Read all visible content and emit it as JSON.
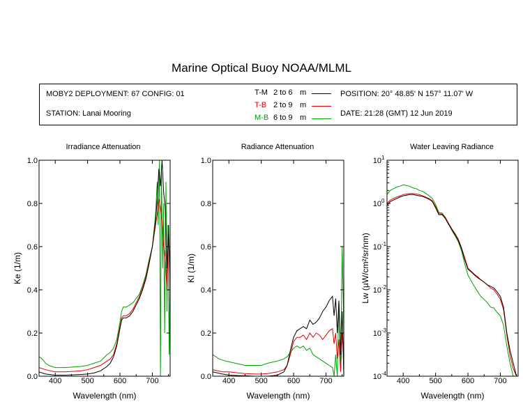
{
  "title": "Marine Optical Buoy NOAA/MLML",
  "info": {
    "deployment": "MOBY2 DEPLOYMENT: 67 CONFIG: 01",
    "station": "STATION: Lanai Mooring",
    "position": "POSITION: 20° 48.85' N   157° 11.07' W",
    "date": "DATE: 21:28 (GMT) 12 Jun 2019",
    "legend": [
      {
        "code": "T-M",
        "range": "2 to 6",
        "unit": "m",
        "color": "#000000",
        "code_color": "#000000"
      },
      {
        "code": "T-B",
        "range": "2 to 9",
        "unit": "m",
        "color": "#e00000",
        "code_color": "#e00000"
      },
      {
        "code": "M-B",
        "range": "6 to 9",
        "unit": "m",
        "color": "#00a000",
        "code_color": "#00a000"
      }
    ]
  },
  "chart_data": [
    {
      "type": "line",
      "title": "Irradiance Attenuation",
      "xlabel": "Wavelength (nm)",
      "ylabel": "Ke  (1/m)",
      "xlim": [
        350,
        755
      ],
      "ylim": [
        0,
        1.0
      ],
      "xticks": [
        "400",
        "500",
        "600",
        "700"
      ],
      "yticks": [
        "0.0",
        "0.2",
        "0.4",
        "0.6",
        "0.8",
        "1.0"
      ],
      "series": [
        {
          "name": "T-M",
          "color": "#000000",
          "x": [
            350,
            370,
            400,
            430,
            450,
            480,
            500,
            520,
            540,
            560,
            570,
            580,
            590,
            600,
            605,
            610,
            620,
            630,
            640,
            650,
            660,
            670,
            680,
            690,
            700,
            710,
            715,
            720,
            725,
            730,
            735,
            740,
            745,
            750,
            755
          ],
          "y": [
            0.02,
            0.01,
            0.005,
            0.005,
            0.006,
            0.008,
            0.01,
            0.015,
            0.025,
            0.045,
            0.06,
            0.09,
            0.14,
            0.22,
            0.26,
            0.27,
            0.27,
            0.28,
            0.3,
            0.33,
            0.36,
            0.4,
            0.45,
            0.52,
            0.6,
            0.72,
            0.82,
            0.96,
            0.88,
            1.0,
            0.85,
            0.78,
            0.5,
            0.7,
            0.4
          ]
        },
        {
          "name": "T-B",
          "color": "#e00000",
          "x": [
            350,
            370,
            400,
            430,
            450,
            480,
            500,
            520,
            540,
            560,
            570,
            580,
            590,
            600,
            605,
            610,
            620,
            630,
            640,
            650,
            660,
            670,
            680,
            690,
            700,
            710,
            715,
            720,
            725,
            730,
            735,
            740,
            745,
            750,
            755
          ],
          "y": [
            0.04,
            0.03,
            0.02,
            0.02,
            0.022,
            0.025,
            0.03,
            0.04,
            0.05,
            0.07,
            0.08,
            0.1,
            0.15,
            0.23,
            0.27,
            0.28,
            0.28,
            0.29,
            0.31,
            0.34,
            0.37,
            0.41,
            0.46,
            0.53,
            0.6,
            0.7,
            0.75,
            0.82,
            0.78,
            0.72,
            0.6,
            0.55,
            0.4,
            0.65,
            0.5
          ]
        },
        {
          "name": "M-B",
          "color": "#00a000",
          "x": [
            350,
            360,
            370,
            380,
            400,
            430,
            450,
            480,
            500,
            520,
            540,
            560,
            570,
            580,
            590,
            600,
            605,
            610,
            620,
            630,
            640,
            650,
            660,
            670,
            680,
            690,
            700,
            710,
            715,
            718,
            722,
            725,
            728,
            732,
            735,
            738,
            742,
            745,
            748,
            752,
            755
          ],
          "y": [
            0.09,
            0.08,
            0.06,
            0.05,
            0.04,
            0.04,
            0.042,
            0.045,
            0.05,
            0.06,
            0.07,
            0.1,
            0.11,
            0.13,
            0.17,
            0.25,
            0.3,
            0.32,
            0.32,
            0.33,
            0.34,
            0.36,
            0.38,
            0.42,
            0.47,
            0.54,
            0.6,
            0.75,
            0.9,
            0.7,
            1.0,
            0.0,
            0.95,
            0.5,
            0.8,
            0.2,
            0.9,
            0.3,
            0.7,
            0.1,
            0.6
          ]
        }
      ]
    },
    {
      "type": "line",
      "title": "Radiance Attenuation",
      "xlabel": "Wavelength (nm)",
      "ylabel": "Kl  (1/m)",
      "xlim": [
        350,
        755
      ],
      "ylim": [
        0,
        1.0
      ],
      "xticks": [
        "400",
        "500",
        "600",
        "700"
      ],
      "yticks": [
        "0.0",
        "0.2",
        "0.4",
        "0.6",
        "0.8",
        "1.0"
      ],
      "series": [
        {
          "name": "T-M",
          "color": "#000000",
          "x": [
            350,
            380,
            400,
            430,
            450,
            480,
            500,
            520,
            550,
            570,
            580,
            590,
            600,
            610,
            620,
            630,
            640,
            650,
            660,
            670,
            680,
            690,
            700,
            710,
            720,
            725,
            730,
            735,
            740,
            745,
            750,
            755
          ],
          "y": [
            0.02,
            0.01,
            0.005,
            0.003,
            0.002,
            0.0,
            -0.01,
            0.0,
            0.005,
            0.02,
            0.05,
            0.12,
            0.18,
            0.21,
            0.22,
            0.23,
            0.22,
            0.26,
            0.24,
            0.25,
            0.27,
            0.3,
            0.32,
            0.35,
            0.37,
            0.28,
            0.36,
            0.2,
            0.35,
            0.1,
            0.3,
            0.0
          ]
        },
        {
          "name": "T-B",
          "color": "#e00000",
          "x": [
            350,
            380,
            400,
            430,
            450,
            480,
            500,
            520,
            550,
            570,
            580,
            590,
            600,
            610,
            620,
            630,
            640,
            650,
            660,
            670,
            680,
            690,
            700,
            710,
            720,
            725,
            730,
            735,
            740,
            745,
            750,
            755
          ],
          "y": [
            0.03,
            0.02,
            0.02,
            0.015,
            0.012,
            0.01,
            0.01,
            0.012,
            0.02,
            0.03,
            0.05,
            0.1,
            0.16,
            0.18,
            0.18,
            0.19,
            0.17,
            0.2,
            0.18,
            0.2,
            0.19,
            0.17,
            0.19,
            0.21,
            0.22,
            0.15,
            0.2,
            0.08,
            0.17,
            0.02,
            0.2,
            0.1
          ]
        },
        {
          "name": "M-B",
          "color": "#00a000",
          "x": [
            350,
            370,
            390,
            420,
            450,
            480,
            500,
            520,
            550,
            570,
            580,
            590,
            600,
            610,
            620,
            630,
            640,
            650,
            660,
            670,
            680,
            690,
            700,
            710,
            720,
            725,
            730,
            735,
            740,
            745,
            750,
            755
          ],
          "y": [
            0.1,
            0.08,
            0.07,
            0.06,
            0.05,
            0.05,
            0.05,
            0.06,
            0.07,
            0.08,
            0.09,
            0.11,
            0.13,
            0.14,
            0.13,
            0.14,
            0.12,
            0.13,
            0.1,
            0.09,
            0.08,
            0.07,
            0.06,
            0.05,
            0.04,
            0.0,
            0.1,
            0.0,
            0.35,
            0.05,
            0.6,
            0.2
          ]
        }
      ]
    },
    {
      "type": "line",
      "title": "Water Leaving Radiance",
      "xlabel": "Wavelength (nm)",
      "ylabel": "Lw  (µW/cm²/sr/nm)",
      "yscale": "log",
      "xlim": [
        350,
        755
      ],
      "ylim": [
        0.0001,
        10
      ],
      "xticks": [
        "400",
        "500",
        "600",
        "700"
      ],
      "yticks": [
        {
          "base": "10",
          "exp": "1",
          "value": 10
        },
        {
          "base": "10",
          "exp": "0",
          "value": 1
        },
        {
          "base": "10",
          "exp": "-1",
          "value": 0.1
        },
        {
          "base": "10",
          "exp": "-2",
          "value": 0.01
        },
        {
          "base": "10",
          "exp": "-3",
          "value": 0.001
        },
        {
          "base": "10",
          "exp": "-4",
          "value": 0.0001
        }
      ],
      "series": [
        {
          "name": "T-M",
          "color": "#000000",
          "x": [
            350,
            360,
            370,
            380,
            390,
            400,
            410,
            420,
            430,
            440,
            450,
            460,
            470,
            480,
            490,
            500,
            510,
            520,
            530,
            540,
            550,
            560,
            570,
            580,
            590,
            600,
            610,
            620,
            630,
            640,
            650,
            660,
            670,
            680,
            690,
            700,
            710,
            720,
            730,
            740,
            750
          ],
          "y": [
            0.9,
            1.1,
            1.2,
            1.3,
            1.4,
            1.5,
            1.55,
            1.6,
            1.6,
            1.55,
            1.5,
            1.45,
            1.35,
            1.25,
            1.1,
            0.8,
            0.55,
            0.55,
            0.45,
            0.33,
            0.25,
            0.19,
            0.14,
            0.09,
            0.05,
            0.03,
            0.026,
            0.022,
            0.019,
            0.017,
            0.015,
            0.013,
            0.012,
            0.011,
            0.009,
            0.007,
            0.004,
            0.001,
            0.0004,
            0.0002,
            0.0001
          ]
        },
        {
          "name": "T-B",
          "color": "#e00000",
          "x": [
            350,
            360,
            370,
            380,
            390,
            400,
            410,
            420,
            430,
            440,
            450,
            460,
            470,
            480,
            490,
            500,
            510,
            520,
            530,
            540,
            550,
            560,
            570,
            580,
            590,
            600,
            610,
            620,
            630,
            640,
            650,
            660,
            670,
            680,
            690,
            700,
            710,
            720,
            730,
            740,
            750
          ],
          "y": [
            1.0,
            1.2,
            1.3,
            1.4,
            1.5,
            1.6,
            1.65,
            1.7,
            1.7,
            1.65,
            1.6,
            1.5,
            1.4,
            1.3,
            1.15,
            0.85,
            0.58,
            0.57,
            0.47,
            0.35,
            0.26,
            0.2,
            0.15,
            0.095,
            0.055,
            0.032,
            0.027,
            0.023,
            0.02,
            0.017,
            0.015,
            0.013,
            0.011,
            0.01,
            0.008,
            0.006,
            0.0035,
            0.0009,
            0.0003,
            0.00015,
            0.0001
          ]
        },
        {
          "name": "M-B",
          "color": "#00a000",
          "x": [
            350,
            360,
            370,
            380,
            390,
            400,
            410,
            420,
            430,
            440,
            450,
            460,
            470,
            480,
            490,
            500,
            510,
            520,
            530,
            540,
            550,
            560,
            570,
            580,
            590,
            600,
            610,
            620,
            630,
            640,
            650,
            660,
            670,
            680,
            690,
            700,
            710,
            720,
            730,
            740,
            750
          ],
          "y": [
            1.6,
            2.0,
            2.2,
            2.4,
            2.5,
            2.7,
            2.6,
            2.5,
            2.3,
            2.2,
            2.0,
            1.9,
            1.7,
            1.5,
            1.3,
            0.95,
            0.62,
            0.6,
            0.48,
            0.34,
            0.24,
            0.18,
            0.13,
            0.08,
            0.04,
            0.022,
            0.016,
            0.012,
            0.009,
            0.007,
            0.006,
            0.005,
            0.004,
            0.0038,
            0.003,
            0.0025,
            0.0015,
            0.0005,
            0.0002,
            0.0001,
            0.0001
          ]
        }
      ]
    }
  ]
}
